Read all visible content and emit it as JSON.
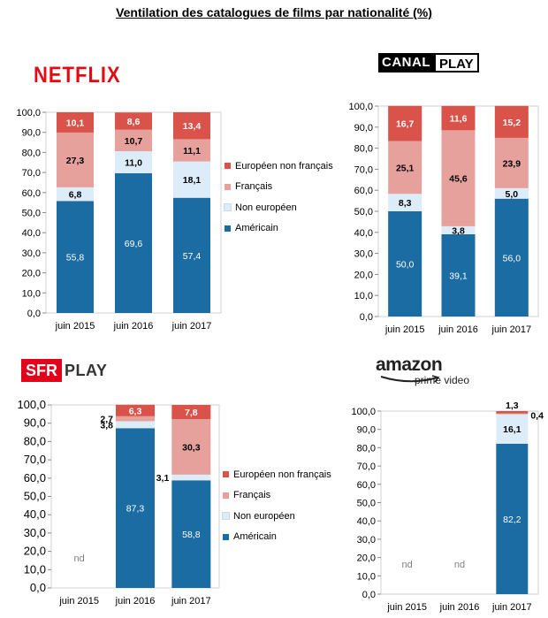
{
  "title": "Ventilation des catalogues de films par nationalité (%)",
  "logos": {
    "netflix": "NETFLIX",
    "canal_a": "CANAL",
    "canal_b": "PLAY",
    "sfr_a": "SFR",
    "sfr_b": "PLAY",
    "amazon_a": "amazon",
    "amazon_b": "prime video"
  },
  "legend": {
    "items": [
      {
        "label": "Européen non français",
        "color": "#d9534a"
      },
      {
        "label": "Français",
        "color": "#e6a19c"
      },
      {
        "label": "Non européen",
        "color": "#dcecf8"
      },
      {
        "label": "Américain",
        "color": "#1b6ca3"
      }
    ]
  },
  "chart_data": [
    {
      "type": "bar",
      "stacked": true,
      "service": "NETFLIX",
      "categories": [
        "juin 2015",
        "juin 2016",
        "juin 2017"
      ],
      "series": [
        {
          "name": "Américain",
          "values": [
            "55,8",
            "69,6",
            "57,4"
          ]
        },
        {
          "name": "Non européen",
          "values": [
            "6,8",
            "11,0",
            "18,1"
          ]
        },
        {
          "name": "Français",
          "values": [
            "27,3",
            "10,7",
            "11,1"
          ]
        },
        {
          "name": "Européen non français",
          "values": [
            "10,1",
            "8,6",
            "13,4"
          ]
        }
      ],
      "yticks": [
        "0,0",
        "10,0",
        "20,0",
        "30,0",
        "40,0",
        "50,0",
        "60,0",
        "70,0",
        "80,0",
        "90,0",
        "100,0"
      ],
      "ylim": [
        0,
        100
      ]
    },
    {
      "type": "bar",
      "stacked": true,
      "service": "CANALPLAY",
      "categories": [
        "juin 2015",
        "juin 2016",
        "juin 2017"
      ],
      "series": [
        {
          "name": "Américain",
          "values": [
            "50,0",
            "39,1",
            "56,0"
          ]
        },
        {
          "name": "Non européen",
          "values": [
            "8,3",
            "3,8",
            "5,0"
          ]
        },
        {
          "name": "Français",
          "values": [
            "25,1",
            "45,6",
            "23,9"
          ]
        },
        {
          "name": "Européen non français",
          "values": [
            "16,7",
            "11,6",
            "15,2"
          ]
        }
      ],
      "yticks": [
        "0,0",
        "10,0",
        "20,0",
        "30,0",
        "40,0",
        "50,0",
        "60,0",
        "70,0",
        "80,0",
        "90,0",
        "100,0"
      ],
      "ylim": [
        0,
        100
      ]
    },
    {
      "type": "bar",
      "stacked": true,
      "service": "SFR PLAY",
      "categories": [
        "juin 2015",
        "juin 2016",
        "juin 2017"
      ],
      "missing_label": "nd",
      "missing": [
        true,
        false,
        false
      ],
      "series": [
        {
          "name": "Américain",
          "values": [
            "",
            "87,3",
            "58,8"
          ]
        },
        {
          "name": "Non européen",
          "values": [
            "",
            "3,8",
            "3,1"
          ]
        },
        {
          "name": "Français",
          "values": [
            "",
            "2,7",
            "30,3"
          ]
        },
        {
          "name": "Européen non français",
          "values": [
            "",
            "6,3",
            "7,8"
          ]
        }
      ],
      "yticks": [
        "0,0",
        "10,0",
        "20,0",
        "30,0",
        "40,0",
        "50,0",
        "60,0",
        "70,0",
        "80,0",
        "90,0",
        "100,0"
      ],
      "ylim": [
        0,
        100
      ]
    },
    {
      "type": "bar",
      "stacked": true,
      "service": "amazon prime video",
      "categories": [
        "juin 2015",
        "juin 2016",
        "juin 2017"
      ],
      "missing_label": "nd",
      "missing": [
        true,
        true,
        false
      ],
      "series": [
        {
          "name": "Américain",
          "values": [
            "",
            "",
            "82,2"
          ]
        },
        {
          "name": "Non européen",
          "values": [
            "",
            "",
            "16,1"
          ]
        },
        {
          "name": "Français",
          "values": [
            "",
            "",
            "0,4"
          ]
        },
        {
          "name": "Européen non français",
          "values": [
            "",
            "",
            "1,3"
          ]
        }
      ],
      "yticks": [
        "0,0",
        "10,0",
        "20,0",
        "30,0",
        "40,0",
        "50,0",
        "60,0",
        "70,0",
        "80,0",
        "90,0",
        "100,0"
      ],
      "ylim": [
        0,
        100
      ]
    }
  ]
}
